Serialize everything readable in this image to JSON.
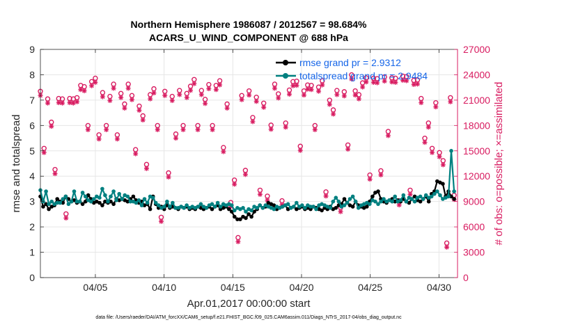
{
  "chart_data": {
    "type": "line",
    "title_line1": "Northern Hemisphere 1986087 / 2012567 = 98.684%",
    "title_line2": "ACARS_U_WIND_COMPONENT @ 688 hPa",
    "xlabel": "Apr.01,2017 00:00:00 start",
    "ylabel": "rmse and totalspread",
    "ylabel_right": "# of obs: o=possible; ×=assimilated",
    "footnote": "data file: /Users/raeder/DAI/ATM_forcXX/CAM6_setup/f.e21.FHIST_BGC.f09_025.CAM6assim.011/Diags_NTrS_2017-04/obs_diag_output.nc",
    "xlim": [
      1.0,
      31.35
    ],
    "ylim": [
      0,
      9
    ],
    "ylim_right": [
      0,
      27000
    ],
    "x_ticks": [
      5,
      10,
      15,
      20,
      25,
      30
    ],
    "x_tick_labels": [
      "04/05",
      "04/10",
      "04/15",
      "04/20",
      "04/25",
      "04/30"
    ],
    "y_ticks": [
      0,
      1,
      2,
      3,
      4,
      5,
      6,
      7,
      8,
      9
    ],
    "y_tick_labels": [
      "0",
      "1",
      "2",
      "3",
      "4",
      "5",
      "6",
      "7",
      "8",
      "9"
    ],
    "y2_ticks": [
      0,
      3000,
      6000,
      9000,
      12000,
      15000,
      18000,
      21000,
      24000,
      27000
    ],
    "y2_tick_labels": [
      "0",
      "3000",
      "6000",
      "9000",
      "12000",
      "15000",
      "18000",
      "21000",
      "24000",
      "27000"
    ],
    "colors": {
      "rmse": "#000000",
      "spread": "#008080",
      "obs": "#d81b60",
      "grid": "#e6e6e6",
      "legend_text": "#1565e8"
    },
    "series": [
      {
        "name": "rmse grand pr = 2.9312",
        "key": "rmse",
        "values": [
          3.2,
          2.8,
          2.9,
          2.7,
          2.8,
          2.85,
          3.1,
          3.0,
          2.95,
          3.2,
          3.1,
          3.0,
          3.05,
          2.95,
          3.0,
          2.9,
          3.0,
          3.25,
          3.1,
          2.95,
          3.0,
          2.95,
          2.85,
          3.0,
          2.95,
          3.0,
          2.9,
          3.1,
          3.05,
          3.1,
          3.05,
          3.0,
          3.1,
          3.2,
          3.05,
          2.95,
          3.0,
          2.85,
          2.9,
          2.7,
          3.2,
          2.9,
          2.75,
          2.8,
          2.7,
          2.85,
          2.75,
          2.8,
          2.75,
          2.7,
          2.8,
          2.75,
          2.8,
          2.7,
          2.75,
          2.7,
          2.8,
          2.75,
          2.7,
          2.75,
          2.8,
          2.7,
          2.8,
          2.85,
          2.7,
          2.75,
          2.8,
          2.7,
          2.6,
          2.4,
          2.3,
          2.3,
          2.4,
          2.35,
          2.5,
          2.4,
          2.6,
          2.7,
          2.85,
          2.75,
          2.8,
          2.95,
          2.9,
          2.85,
          2.7,
          2.75,
          2.8,
          2.85,
          2.7,
          2.75,
          2.8,
          2.7,
          2.75,
          2.8,
          2.7,
          2.75,
          2.7,
          2.8,
          2.75,
          2.7,
          2.65,
          2.75,
          2.7,
          2.8,
          2.7,
          2.75,
          2.85,
          2.9,
          3.1,
          2.95,
          2.85,
          2.8,
          3.0,
          2.85,
          2.8,
          2.75,
          2.8,
          3.0,
          3.2,
          3.35,
          3.4,
          3.1,
          3.0,
          2.95,
          3.05,
          3.1,
          3.0,
          3.05,
          3.0,
          3.1,
          3.0,
          2.95,
          3.1,
          3.2,
          3.05,
          3.0,
          3.1,
          3.2,
          3.0,
          3.3,
          3.4,
          3.8,
          3.75,
          3.7,
          3.2,
          3.4,
          3.2,
          3.1
        ]
      },
      {
        "name": "totalspread grand pr = 2.9484",
        "key": "spread",
        "values": [
          3.45,
          3.0,
          3.4,
          2.9,
          3.0,
          2.9,
          2.95,
          2.95,
          3.1,
          3.2,
          2.9,
          3.0,
          3.4,
          3.0,
          3.0,
          3.35,
          3.2,
          3.05,
          3.0,
          3.1,
          3.2,
          3.15,
          3.5,
          3.25,
          3.0,
          3.2,
          3.4,
          3.05,
          3.3,
          3.1,
          3.25,
          3.2,
          3.0,
          3.0,
          2.95,
          3.05,
          2.85,
          3.1,
          2.95,
          3.2,
          3.15,
          2.95,
          2.85,
          2.75,
          2.8,
          3.0,
          2.8,
          2.95,
          2.75,
          2.75,
          2.8,
          2.75,
          2.85,
          2.75,
          2.8,
          2.75,
          2.8,
          2.9,
          2.8,
          2.75,
          2.85,
          2.9,
          2.8,
          2.95,
          2.8,
          2.9,
          2.85,
          2.9,
          2.85,
          2.65,
          2.75,
          2.7,
          2.75,
          2.6,
          2.7,
          2.65,
          2.8,
          2.75,
          2.85,
          2.75,
          2.85,
          2.8,
          2.75,
          2.7,
          2.8,
          2.75,
          2.8,
          2.85,
          2.9,
          2.75,
          2.8,
          2.95,
          2.8,
          2.85,
          2.75,
          2.85,
          2.8,
          2.8,
          2.7,
          2.85,
          2.9,
          2.85,
          2.8,
          2.75,
          3.0,
          3.15,
          3.0,
          2.8,
          2.85,
          2.95,
          3.1,
          3.2,
          3.0,
          2.75,
          2.85,
          2.9,
          2.95,
          2.9,
          3.05,
          3.0,
          2.9,
          3.0,
          3.1,
          3.0,
          3.05,
          3.0,
          3.2,
          3.0,
          3.05,
          3.25,
          3.0,
          3.15,
          3.1,
          3.0,
          3.15,
          3.2,
          3.1,
          3.25,
          3.15,
          3.2,
          3.3,
          3.4,
          3.25,
          3.1,
          3.15,
          3.2,
          5.0,
          3.4
        ]
      }
    ],
    "obs_possible": [
      21750,
      15000,
      20850,
      18100,
      12500,
      20900,
      20850,
      7250,
      20900,
      20850,
      21000,
      22450,
      22300,
      17700,
      22900,
      23300,
      16600,
      21600,
      17700,
      21150,
      22600,
      16600,
      21500,
      20250,
      22600,
      21250,
      14850,
      20000,
      18850,
      13100,
      21350,
      22050,
      17700,
      6850,
      21750,
      12100,
      21150,
      16700,
      21850,
      17700,
      21500,
      22350,
      23150,
      17700,
      21850,
      20800,
      22550,
      17700,
      22450,
      23000,
      15100,
      20250,
      8600,
      11250,
      4450,
      21250,
      12400,
      21800,
      18650,
      21050,
      10050,
      20350,
      9350,
      17750,
      22600,
      21450,
      8800,
      18000,
      21900,
      22900,
      22950,
      15250,
      21800,
      22500,
      22450,
      17700,
      22250,
      23000,
      9850,
      20700,
      19550,
      21850,
      8000,
      21700,
      15400,
      23700,
      21800,
      21350,
      22750,
      23350,
      11850,
      23300,
      23250,
      12350,
      23450,
      17000,
      23350,
      23300,
      8800,
      23550,
      23500,
      10050,
      23050,
      23100,
      20900,
      16200,
      18000,
      15000,
      20400,
      14500,
      13550,
      3800,
      21000,
      9450
    ]
  }
}
